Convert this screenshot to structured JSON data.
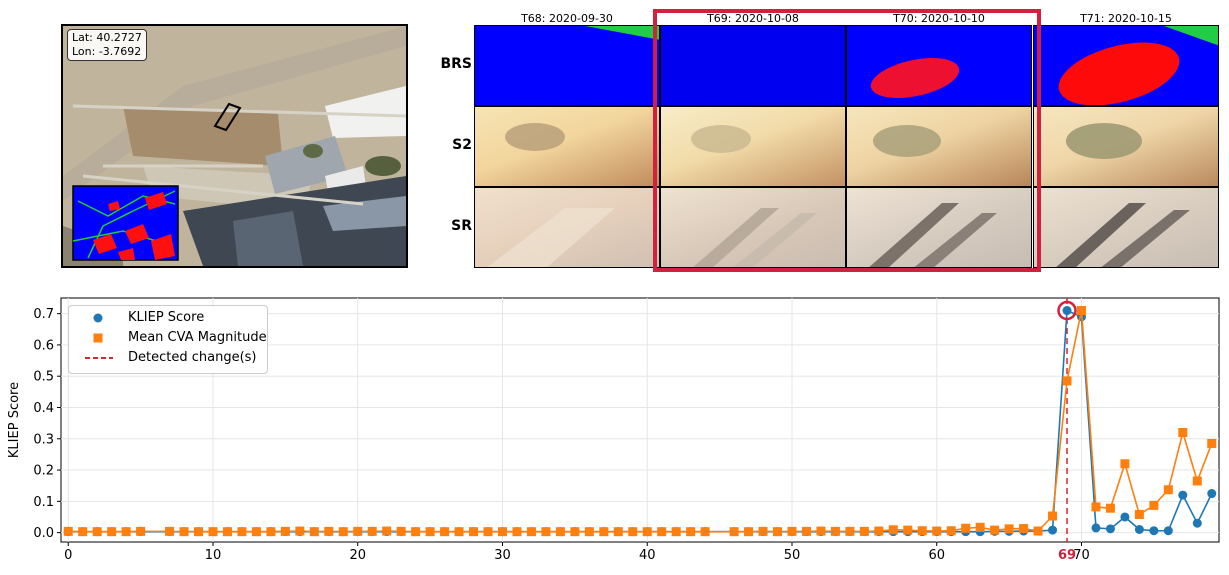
{
  "map": {
    "coord_lines": [
      "Lat: 40.2727",
      "Lon: -3.7692"
    ]
  },
  "tiles": {
    "columns": [
      "T68: 2020-09-30",
      "T69: 2020-10-08",
      "T70: 2020-10-10",
      "T71: 2020-10-15"
    ],
    "rows": [
      "BRS",
      "S2",
      "SR"
    ],
    "highlighted_columns": [
      "T69: 2020-10-08",
      "T70: 2020-10-10"
    ],
    "highlight_color": "#d0213f"
  },
  "legend": {
    "items": [
      {
        "label": "KLIEP Score",
        "color": "#1f77b4",
        "marker": "circle"
      },
      {
        "label": "Mean CVA Magnitude",
        "color": "#ff7f0e",
        "marker": "square"
      },
      {
        "label": "Detected change(s)",
        "color": "#d62728",
        "marker": "dashed-line"
      }
    ]
  },
  "chart_data": {
    "type": "line",
    "ylabel": "KLIEP Score",
    "xlabel": "",
    "xlim": [
      -0.5,
      79.5
    ],
    "ylim": [
      -0.03,
      0.75
    ],
    "xticks": [
      0,
      10,
      20,
      30,
      40,
      50,
      60,
      70
    ],
    "yticks": [
      0.0,
      0.1,
      0.2,
      0.3,
      0.4,
      0.5,
      0.6,
      0.7
    ],
    "grid": true,
    "legend_position": "upper-left",
    "detected_change_x": 69,
    "detected_change_label": "69",
    "series": [
      {
        "name": "KLIEP Score",
        "color": "#1f77b4",
        "marker": "circle",
        "x": [
          0,
          1,
          2,
          3,
          4,
          5,
          7,
          8,
          9,
          10,
          11,
          12,
          13,
          14,
          15,
          16,
          17,
          18,
          19,
          20,
          21,
          22,
          23,
          24,
          25,
          26,
          27,
          28,
          29,
          30,
          31,
          32,
          33,
          34,
          35,
          36,
          37,
          38,
          39,
          40,
          41,
          42,
          43,
          44,
          46,
          47,
          48,
          49,
          50,
          51,
          52,
          53,
          54,
          55,
          56,
          57,
          58,
          59,
          60,
          61,
          62,
          63,
          64,
          65,
          66,
          67,
          68,
          69,
          70,
          71,
          72,
          73,
          74,
          75,
          76,
          77,
          78,
          79
        ],
        "values": [
          0.003,
          0.003,
          0.003,
          0.003,
          0.003,
          0.003,
          0.003,
          0.003,
          0.003,
          0.003,
          0.003,
          0.003,
          0.003,
          0.003,
          0.003,
          0.003,
          0.003,
          0.003,
          0.003,
          0.003,
          0.003,
          0.003,
          0.003,
          0.003,
          0.003,
          0.003,
          0.003,
          0.003,
          0.003,
          0.003,
          0.003,
          0.003,
          0.003,
          0.003,
          0.003,
          0.003,
          0.003,
          0.003,
          0.003,
          0.003,
          0.003,
          0.003,
          0.003,
          0.003,
          0.003,
          0.003,
          0.003,
          0.003,
          0.003,
          0.003,
          0.003,
          0.003,
          0.003,
          0.003,
          0.003,
          0.003,
          0.003,
          0.003,
          0.003,
          0.003,
          0.003,
          0.003,
          0.004,
          0.004,
          0.005,
          0.005,
          0.008,
          0.71,
          0.69,
          0.015,
          0.012,
          0.05,
          0.01,
          0.006,
          0.006,
          0.12,
          0.03,
          0.125
        ]
      },
      {
        "name": "Mean CVA Magnitude",
        "color": "#ff7f0e",
        "marker": "square",
        "x": [
          0,
          1,
          2,
          3,
          4,
          5,
          7,
          8,
          9,
          10,
          11,
          12,
          13,
          14,
          15,
          16,
          17,
          18,
          19,
          20,
          21,
          22,
          23,
          24,
          25,
          26,
          27,
          28,
          29,
          30,
          31,
          32,
          33,
          34,
          35,
          36,
          37,
          38,
          39,
          40,
          41,
          42,
          43,
          44,
          46,
          47,
          48,
          49,
          50,
          51,
          52,
          53,
          54,
          55,
          56,
          57,
          58,
          59,
          60,
          61,
          62,
          63,
          64,
          65,
          66,
          67,
          68,
          69,
          70,
          71,
          72,
          73,
          74,
          75,
          76,
          77,
          78,
          79
        ],
        "values": [
          0.004,
          0.003,
          0.003,
          0.003,
          0.003,
          0.004,
          0.004,
          0.003,
          0.003,
          0.003,
          0.003,
          0.003,
          0.003,
          0.003,
          0.004,
          0.005,
          0.003,
          0.004,
          0.003,
          0.004,
          0.004,
          0.005,
          0.004,
          0.003,
          0.003,
          0.003,
          0.003,
          0.003,
          0.003,
          0.003,
          0.003,
          0.003,
          0.003,
          0.003,
          0.003,
          0.003,
          0.003,
          0.003,
          0.003,
          0.003,
          0.003,
          0.003,
          0.003,
          0.003,
          0.003,
          0.003,
          0.004,
          0.003,
          0.004,
          0.004,
          0.005,
          0.004,
          0.004,
          0.004,
          0.005,
          0.009,
          0.008,
          0.006,
          0.005,
          0.006,
          0.014,
          0.017,
          0.008,
          0.012,
          0.013,
          0.005,
          0.053,
          0.485,
          0.71,
          0.082,
          0.078,
          0.22,
          0.058,
          0.087,
          0.137,
          0.32,
          0.165,
          0.285
        ]
      }
    ]
  }
}
